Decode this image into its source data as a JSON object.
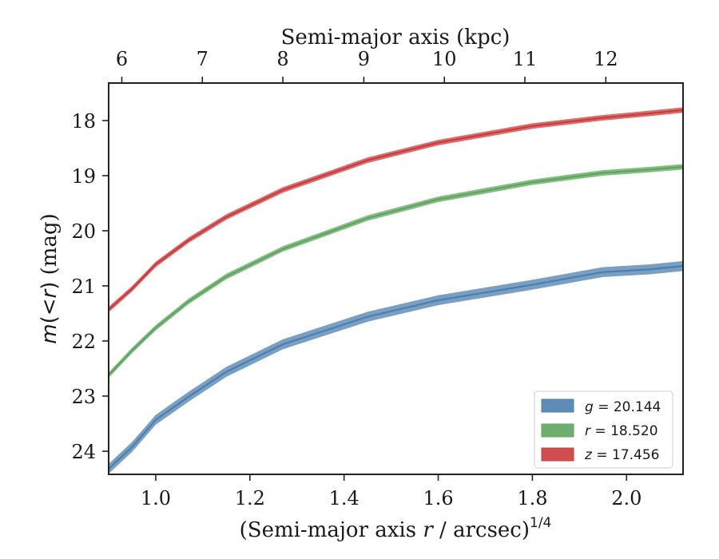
{
  "chart_data": {
    "type": "line",
    "xlabel": "(Semi-major axis r / arcsec)^{1/4}",
    "xlabel_parts": [
      "(Semi-major axis ",
      "r",
      " / arcsec)",
      "1/4"
    ],
    "ylabel": "m(<r) (mag)",
    "ylabel_parts": [
      "m",
      "(",
      "<",
      "r",
      ")",
      " (mag)"
    ],
    "top_xlabel": "Semi-major axis (kpc)",
    "xlim": [
      0.9,
      2.12
    ],
    "ylim": [
      24.42,
      17.32
    ],
    "y_inverted": true,
    "x_ticks": [
      1.0,
      1.2,
      1.4,
      1.6,
      1.8,
      2.0
    ],
    "x_tick_labels": [
      "1.0",
      "1.2",
      "1.4",
      "1.6",
      "1.8",
      "2.0"
    ],
    "y_ticks": [
      18,
      19,
      20,
      21,
      22,
      23,
      24
    ],
    "y_tick_labels": [
      "18",
      "19",
      "20",
      "21",
      "22",
      "23",
      "24"
    ],
    "top_ticks": [
      {
        "label": "6",
        "x": 0.928
      },
      {
        "label": "7",
        "x": 1.099
      },
      {
        "label": "8",
        "x": 1.27
      },
      {
        "label": "9",
        "x": 1.442
      },
      {
        "label": "10",
        "x": 1.613
      },
      {
        "label": "11",
        "x": 1.784
      },
      {
        "label": "12",
        "x": 1.956
      }
    ],
    "legend_position": "lower-right",
    "grid": false,
    "series": [
      {
        "name": "g = 20.144",
        "legend_var": "g",
        "legend_value": "20.144",
        "color": "#4c7fae",
        "band": 0.09,
        "x": [
          0.9,
          0.95,
          1.0,
          1.07,
          1.15,
          1.27,
          1.45,
          1.6,
          1.8,
          1.95,
          2.05,
          2.12
        ],
        "y": [
          24.32,
          23.92,
          23.43,
          23.01,
          22.56,
          22.06,
          21.56,
          21.26,
          20.98,
          20.75,
          20.7,
          20.64
        ]
      },
      {
        "name": "r = 18.520",
        "legend_var": "r",
        "legend_value": "18.520",
        "color": "#5ea55e",
        "band": 0.05,
        "x": [
          0.9,
          0.95,
          1.0,
          1.07,
          1.15,
          1.27,
          1.45,
          1.6,
          1.8,
          1.95,
          2.05,
          2.12
        ],
        "y": [
          22.62,
          22.17,
          21.76,
          21.28,
          20.83,
          20.33,
          19.77,
          19.43,
          19.12,
          18.95,
          18.89,
          18.84
        ]
      },
      {
        "name": "z = 17.456",
        "legend_var": "z",
        "legend_value": "17.456",
        "color": "#cc3b3b",
        "band": 0.05,
        "x": [
          0.9,
          0.95,
          1.0,
          1.07,
          1.15,
          1.27,
          1.45,
          1.6,
          1.8,
          1.95,
          2.05,
          2.12
        ],
        "y": [
          21.43,
          21.05,
          20.61,
          20.17,
          19.75,
          19.26,
          18.72,
          18.4,
          18.1,
          17.95,
          17.87,
          17.81
        ]
      }
    ]
  }
}
